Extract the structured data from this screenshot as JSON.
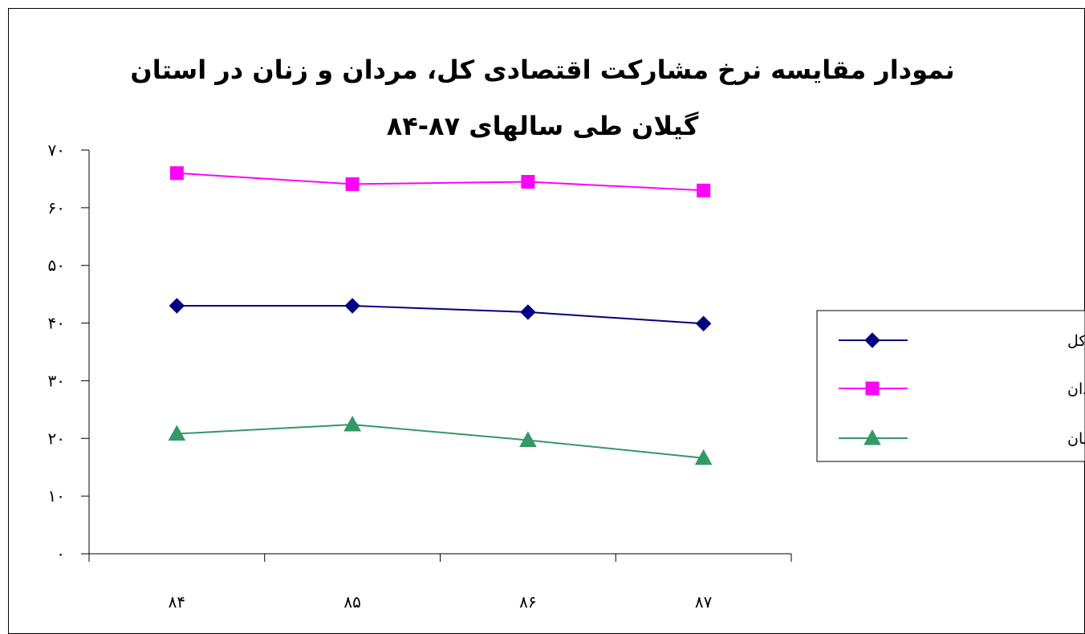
{
  "chart_data": {
    "type": "line",
    "title": [
      "نمودار مقایسه نرخ مشارکت اقتصادی کل، مردان و زنان در استان",
      "گیلان طی سالهای ۸۷-۸۴"
    ],
    "xlabel": "",
    "ylabel": "",
    "categories": [
      "۸۴",
      "۸۵",
      "۸۶",
      "۸۷"
    ],
    "ylim": [
      0,
      70
    ],
    "yticks": [
      0,
      10,
      20,
      30,
      40,
      50,
      60,
      70
    ],
    "ytick_labels": [
      "۰",
      "۱۰",
      "۲۰",
      "۳۰",
      "۴۰",
      "۵۰",
      "۶۰",
      "۷۰"
    ],
    "grid": false,
    "legend_position": "right",
    "series": [
      {
        "name": "نرخ مشارکت کل",
        "values": [
          43.0,
          43.0,
          41.9,
          39.9
        ],
        "color": "#000080",
        "marker": "diamond"
      },
      {
        "name": "نرخ مشارکت مردان",
        "values": [
          66.0,
          64.1,
          64.5,
          63.0
        ],
        "color": "#FF00FF",
        "marker": "square"
      },
      {
        "name": "نرخ مشارکت زنان",
        "values": [
          20.8,
          22.4,
          19.7,
          16.6
        ],
        "color": "#339966",
        "marker": "triangle"
      }
    ]
  }
}
